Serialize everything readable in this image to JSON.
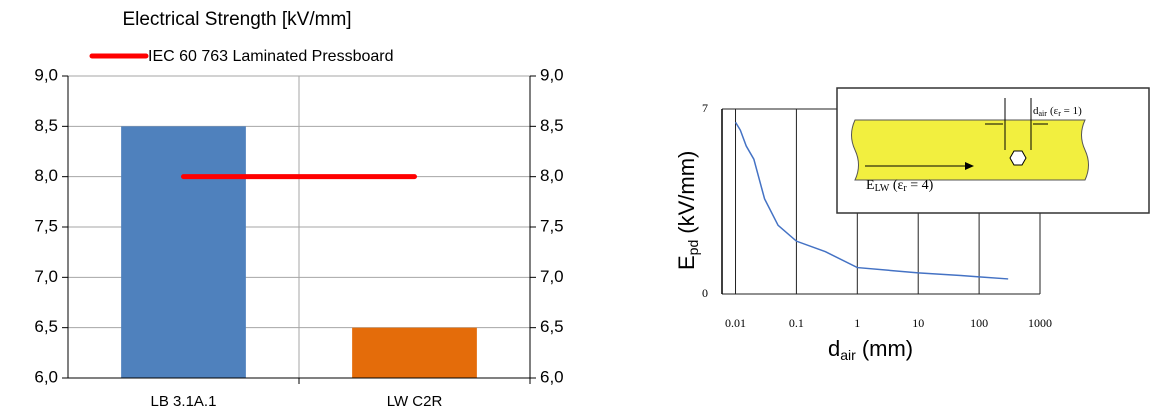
{
  "chart_data": [
    {
      "type": "bar",
      "title": "Electrical Strength [kV/mm]",
      "categories": [
        "LB 3.1A.1",
        "LW C2R"
      ],
      "values": [
        8.5,
        6.5
      ],
      "colors": [
        "#4f81bd",
        "#e46c0a"
      ],
      "lines": [
        {
          "name": "IEC 60 763 Laminated Pressboard",
          "color": "#ff0000",
          "values": [
            8.0,
            8.0
          ]
        }
      ],
      "ylim": [
        6,
        9
      ],
      "yticks": [
        {
          "value": 6,
          "label": "6,0"
        },
        {
          "value": 6.5,
          "label": "6,5"
        },
        {
          "value": 7,
          "label": "7,0"
        },
        {
          "value": 7.5,
          "label": "7,5"
        },
        {
          "value": 8,
          "label": "8,0"
        },
        {
          "value": 8.5,
          "label": "8,5"
        },
        {
          "value": 9,
          "label": "9,0"
        }
      ],
      "y2lim": [
        6,
        9
      ],
      "y2ticks": [
        {
          "value": 6,
          "label": "6,0"
        },
        {
          "value": 6.5,
          "label": "6,5"
        },
        {
          "value": 7,
          "label": "7,0"
        },
        {
          "value": 7.5,
          "label": "7,5"
        },
        {
          "value": 8,
          "label": "8,0"
        },
        {
          "value": 8.5,
          "label": "8,5"
        },
        {
          "value": 9,
          "label": "9,0"
        }
      ],
      "grid": true,
      "legend": "top"
    },
    {
      "type": "line",
      "log_x": true,
      "x_label": {
        "main": "d",
        "sub": "air",
        "unit": "(mm)"
      },
      "y_label": {
        "main": "E",
        "sub": "pd",
        "unit": "(kV/mm)"
      },
      "x": [
        0.01,
        0.012,
        0.015,
        0.02,
        0.03,
        0.05,
        0.1,
        0.3,
        1,
        10,
        50,
        100,
        300
      ],
      "series": [
        {
          "color": "#4472c4",
          "values": [
            6.5,
            6.2,
            5.6,
            5.1,
            3.6,
            2.6,
            2.0,
            1.6,
            1.0,
            0.8,
            0.7,
            0.65,
            0.57
          ]
        }
      ],
      "xlim": [
        0.006,
        1000
      ],
      "xticks": [
        0.01,
        0.1,
        1,
        10,
        100,
        1000
      ],
      "ylim": [
        0,
        7
      ],
      "yticks": [
        0,
        7
      ],
      "grid": true,
      "inset": {
        "gap_label": {
          "main": "d",
          "sub": "air",
          "rest": "(ε",
          "sub2": "r",
          "end": " = 1)"
        },
        "field_label": {
          "main": "E",
          "sub": "LW",
          "rest": " (ε",
          "sub2": "r",
          "end": " = 4)"
        }
      }
    }
  ]
}
